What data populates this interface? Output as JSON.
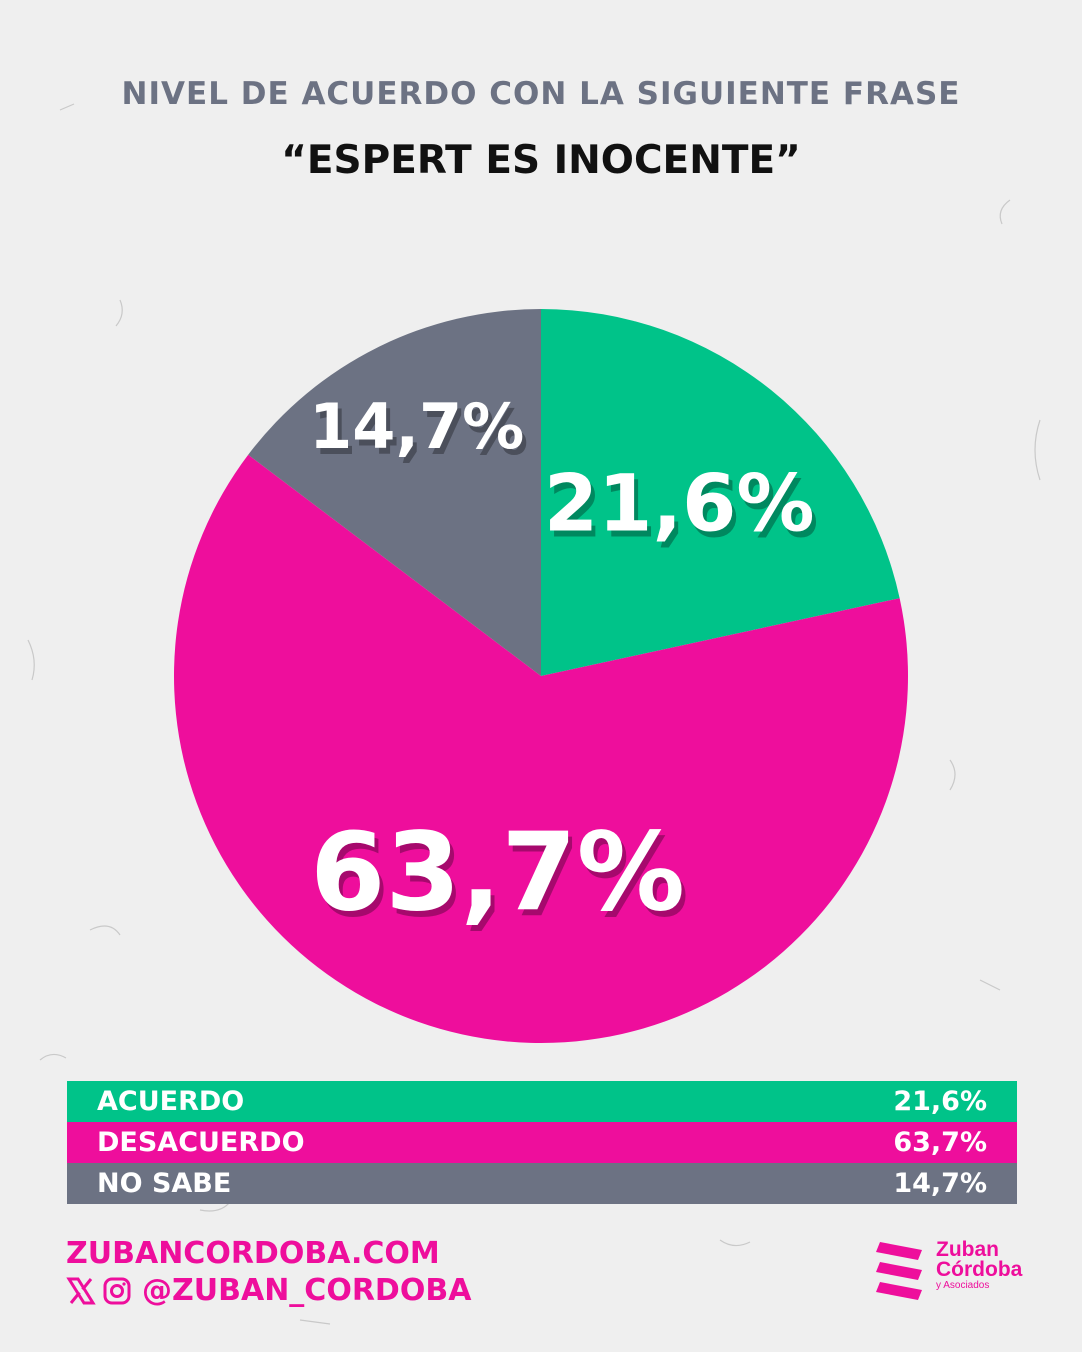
{
  "title": "NIVEL DE ACUERDO CON LA SIGUIENTE FRASE",
  "subtitle": "“ESPERT ES INOCENTE”",
  "colors": {
    "acuerdo": "#00c389",
    "desacuerdo": "#ee0e9c",
    "no_sabe": "#6c7283",
    "brand": "#ee0e9c",
    "background": "#efefef"
  },
  "chart_data": {
    "type": "pie",
    "title": "NIVEL DE ACUERDO CON LA SIGUIENTE FRASE",
    "subtitle": "“ESPERT ES INOCENTE”",
    "slices": [
      {
        "name": "ACUERDO",
        "value": 21.6,
        "label": "21,6%",
        "color": "#00c389"
      },
      {
        "name": "DESACUERDO",
        "value": 63.7,
        "label": "63,7%",
        "color": "#ee0e9c"
      },
      {
        "name": "NO SABE",
        "value": 14.7,
        "label": "14,7%",
        "color": "#6c7283"
      }
    ],
    "start": "12 o'clock, clockwise"
  },
  "legend": [
    {
      "label": "ACUERDO",
      "value": "21,6%",
      "color": "#00c389"
    },
    {
      "label": "DESACUERDO",
      "value": "63,7%",
      "color": "#ee0e9c"
    },
    {
      "label": "NO SABE",
      "value": "14,7%",
      "color": "#6c7283"
    }
  ],
  "footer": {
    "website": "ZUBANCORDOBA.COM",
    "handle": "@ZUBAN_CORDOBA",
    "icons": [
      "x-icon",
      "instagram-icon"
    ]
  },
  "logo": {
    "line1": "Zuban",
    "line2": "Córdoba",
    "line3": "y Asociados"
  }
}
